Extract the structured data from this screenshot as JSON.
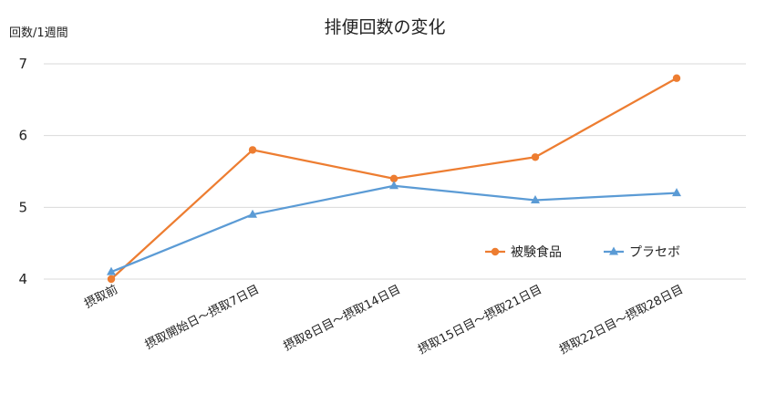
{
  "chart_data": {
    "type": "line",
    "title": "排便回数の変化",
    "xlabel": "",
    "ylabel": "回数/1週間",
    "categories": [
      "摂取前",
      "摂取開始日～摂取7日目",
      "摂取8日目～摂取14日目",
      "摂取15日目～摂取21日目",
      "摂取22日目～摂取28日目"
    ],
    "ylim": [
      4,
      7
    ],
    "yticks": [
      4,
      5,
      6,
      7
    ],
    "grid": true,
    "legend_position": "right",
    "series": [
      {
        "name": "被験食品",
        "values": [
          4.0,
          5.8,
          5.4,
          5.7,
          6.8
        ],
        "color": "#ed7d31",
        "marker": "circle"
      },
      {
        "name": "プラセボ",
        "values": [
          4.1,
          4.9,
          5.3,
          5.1,
          5.2
        ],
        "color": "#5b9bd5",
        "marker": "triangle"
      }
    ]
  }
}
